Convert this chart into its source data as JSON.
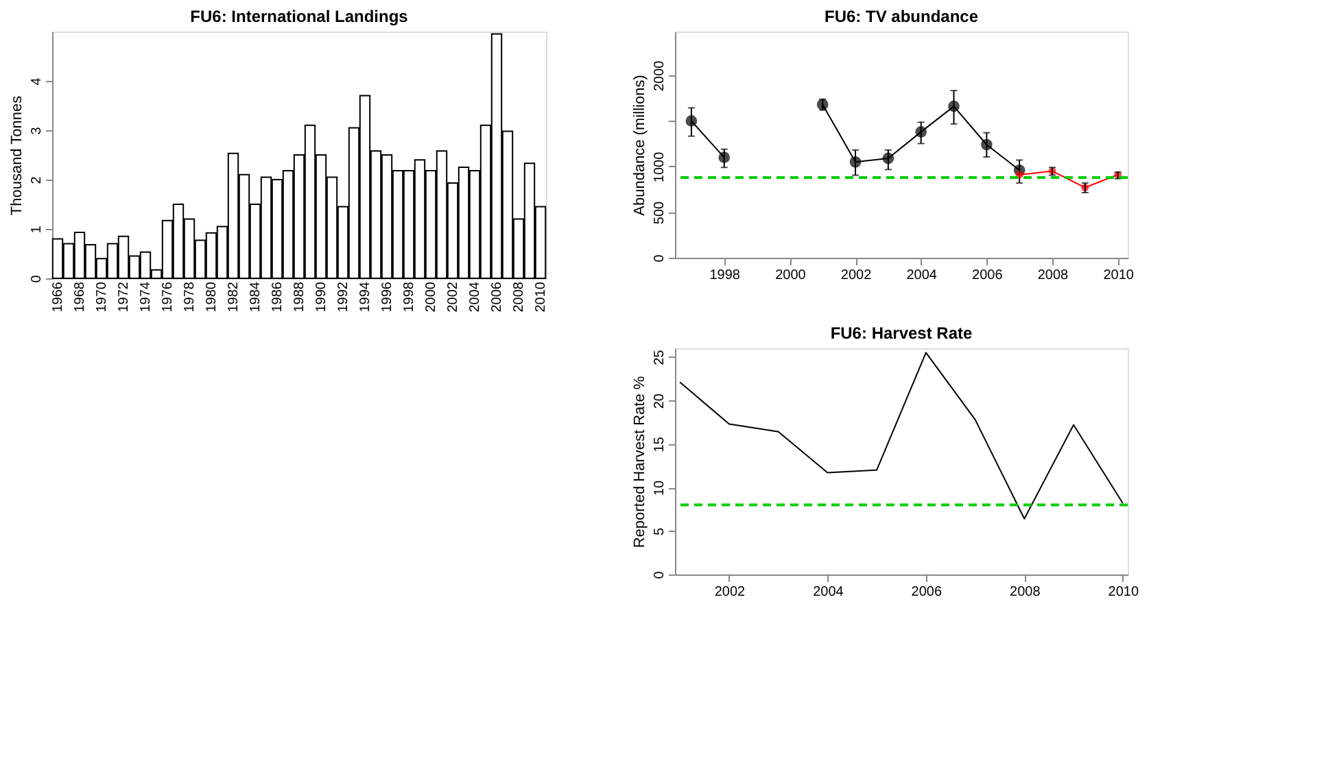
{
  "chart_data": [
    {
      "type": "bar",
      "title": "FU6: International Landings",
      "ylabel": "Thousand Tonnes",
      "categories": [
        "1966",
        null,
        "1968",
        null,
        "1970",
        null,
        "1972",
        null,
        "1974",
        null,
        "1976",
        null,
        "1978",
        null,
        "1980",
        null,
        "1982",
        null,
        "1984",
        null,
        "1986",
        null,
        "1988",
        null,
        "1990",
        null,
        "1992",
        null,
        "1994",
        null,
        "1996",
        null,
        "1998",
        null,
        "2000",
        null,
        "2002",
        null,
        "2004",
        null,
        "2006",
        null,
        "2008",
        null,
        "2010"
      ],
      "values": [
        0.8,
        0.7,
        0.93,
        0.68,
        0.4,
        0.7,
        0.85,
        0.45,
        0.53,
        0.17,
        1.17,
        1.5,
        1.2,
        0.77,
        0.92,
        1.05,
        2.53,
        2.1,
        1.5,
        2.05,
        2.0,
        2.18,
        2.5,
        3.1,
        2.5,
        2.05,
        1.45,
        3.05,
        3.7,
        2.58,
        2.5,
        2.18,
        2.18,
        2.4,
        2.18,
        2.58,
        1.93,
        2.25,
        2.18,
        3.1,
        4.95,
        2.98,
        1.2,
        2.33,
        1.45
      ],
      "color": "#ffffff",
      "ylim": [
        0,
        5
      ],
      "yticks": [
        0,
        1,
        2,
        3,
        4
      ],
      "grid": false
    },
    {
      "type": "line",
      "title": "FU6: TV abundance",
      "ylabel": "Abundance (millions)",
      "marker": "circle",
      "xlim": [
        1996.5,
        2010.3
      ],
      "xticks": [
        1998,
        2000,
        2002,
        2004,
        2006,
        2008,
        2010
      ],
      "ylim": [
        0,
        2480
      ],
      "yticks": [
        0,
        500,
        1000,
        {
          "value": 1500,
          "label": null
        },
        2000
      ],
      "series": [
        {
          "color": "#000000",
          "x": [
            1997,
            1998,
            1999,
            2000,
            2001,
            2002,
            2003,
            2004,
            2005,
            2006,
            2007
          ],
          "values": [
            1500,
            1100,
            null,
            null,
            1680,
            1050,
            1090,
            1380,
            1660,
            1240,
            960
          ],
          "errors": [
            [
              1333,
              1643
            ],
            [
              990,
              1190
            ],
            null,
            null,
            [
              1619,
              1738
            ],
            [
              905,
              1181
            ],
            [
              967,
              1181
            ],
            [
              1252,
              1486
            ],
            [
              1467,
              1833
            ],
            [
              1105,
              1371
            ],
            [
              819,
              1071
            ]
          ]
        },
        {
          "color": "#ff0000",
          "x": [
            2007,
            2008,
            2009,
            2010
          ],
          "values": [
            910,
            950,
            770,
            910
          ],
          "errors": [
            null,
            [
              905,
              990
            ],
            [
              714,
              819
            ],
            [
              867,
              938
            ]
          ]
        }
      ],
      "ref_lines": [
        {
          "axis": "y",
          "value": 880,
          "color": "#00cc00",
          "line_style": "dashed"
        }
      ],
      "grid": false
    },
    {
      "type": "line",
      "title": "FU6: Harvest Rate",
      "ylabel": "Reported Harvest Rate %",
      "marker": "none",
      "xlim": [
        2000.9,
        2010.1
      ],
      "xticks": [
        2002,
        2004,
        2006,
        2008,
        2010
      ],
      "ylim": [
        0,
        26
      ],
      "yticks": [
        0,
        5,
        10,
        15,
        20,
        25
      ],
      "series": [
        {
          "color": "#000000",
          "x": [
            2001,
            2002,
            2003,
            2004,
            2005,
            2006,
            2007,
            2008,
            2009,
            2010
          ],
          "values": [
            22.1,
            17.3,
            16.4,
            11.7,
            12.0,
            25.5,
            17.8,
            6.4,
            17.2,
            8.2
          ]
        }
      ],
      "ref_lines": [
        {
          "axis": "y",
          "value": 8.0,
          "color": "#00cc00",
          "line_style": "dashed"
        }
      ],
      "grid": false
    }
  ]
}
